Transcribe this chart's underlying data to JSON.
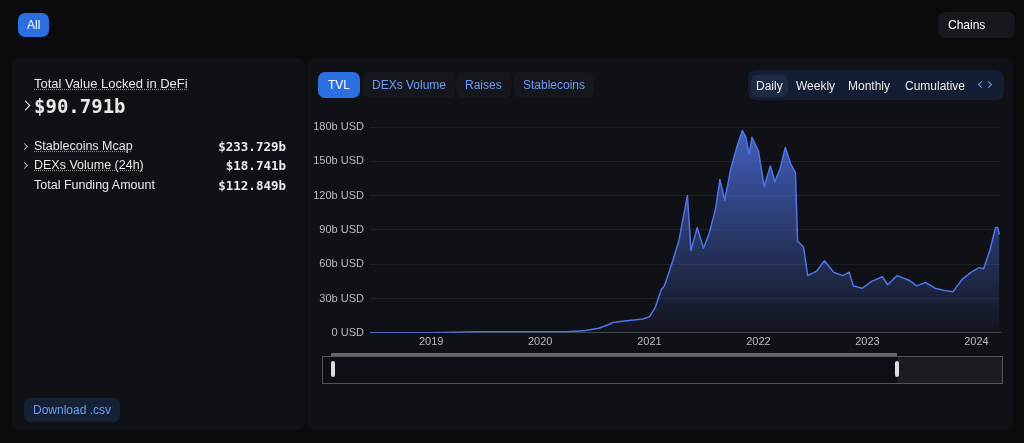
{
  "chart_data": [
    {
      "type": "other",
      "annotations": [
        "Total Value Locked in DeFi",
        "$90.791b",
        "Stablecoins Mcap",
        "$233.729b",
        "DEXs Volume (24h)",
        "$18.741b",
        "Total Funding Amount",
        "$112.849b",
        "Download .csv",
        "All",
        "Chains",
        "TVL",
        "DEXs Volume",
        "Raises",
        "Stablecoins",
        "Daily",
        "Weekly",
        "Monthly",
        "Cumulative"
      ]
    },
    {
      "type": "area",
      "color": "#4f74e8",
      "x": [
        "2018-06-10",
        "2018-10-01",
        "2019-01-01",
        "2019-06-01",
        "2019-10-01",
        "2020-01-01",
        "2020-04-01",
        "2020-06-01",
        "2020-07-15",
        "2020-08-15",
        "2020-09-01",
        "2020-10-01",
        "2020-11-01",
        "2020-12-10",
        "2021-01-01",
        "2021-01-20",
        "2021-02-10",
        "2021-02-20",
        "2021-03-05",
        "2021-03-20",
        "2021-04-10",
        "2021-05-08",
        "2021-05-20",
        "2021-06-10",
        "2021-07-01",
        "2021-07-20",
        "2021-08-10",
        "2021-08-25",
        "2021-09-10",
        "2021-10-01",
        "2021-10-20",
        "2021-11-08",
        "2021-11-20",
        "2021-12-01",
        "2021-12-10",
        "2022-01-01",
        "2022-01-20",
        "2022-02-10",
        "2022-02-25",
        "2022-03-15",
        "2022-04-01",
        "2022-04-20",
        "2022-05-05",
        "2022-05-12",
        "2022-06-01",
        "2022-06-15",
        "2022-07-15",
        "2022-08-10",
        "2022-09-10",
        "2022-10-10",
        "2022-11-01",
        "2022-11-15",
        "2022-12-15",
        "2023-01-15",
        "2023-02-20",
        "2023-03-10",
        "2023-04-10",
        "2023-05-20",
        "2023-06-15",
        "2023-07-15",
        "2023-08-15",
        "2023-09-15",
        "2023-10-15",
        "2023-11-15",
        "2023-12-15",
        "2024-01-10",
        "2024-01-25",
        "2024-02-15",
        "2024-03-05",
        "2024-03-12",
        "2024-03-18"
      ],
      "values": [
        0,
        0,
        0,
        1,
        1,
        1,
        1,
        2,
        4,
        7,
        9,
        10,
        11,
        12,
        14,
        22,
        38,
        41,
        51,
        63,
        81,
        120,
        72,
        92,
        74,
        87,
        108,
        134,
        116,
        144,
        162,
        177,
        171,
        156,
        171,
        159,
        128,
        146,
        132,
        144,
        162,
        147,
        140,
        80,
        75,
        50,
        54,
        63,
        53,
        50,
        53,
        41,
        39,
        45,
        49,
        42,
        50,
        46,
        41,
        44,
        39,
        37,
        36,
        47,
        53,
        57,
        56,
        72,
        92,
        92,
        86
      ],
      "xlim": [
        "2018-06-10",
        "2024-03-20"
      ],
      "xticks": [
        "2019",
        "2020",
        "2021",
        "2022",
        "2023",
        "2024"
      ],
      "ylim": [
        0,
        180
      ],
      "yticks": [
        {
          "value": 0,
          "label": "0 USD"
        },
        {
          "value": 30,
          "label": "30b USD"
        },
        {
          "value": 60,
          "label": "60b USD"
        },
        {
          "value": 90,
          "label": "90b USD"
        },
        {
          "value": 120,
          "label": "120b USD"
        },
        {
          "value": 150,
          "label": "150b USD"
        },
        {
          "value": 180,
          "label": "180b USD"
        }
      ],
      "grid": "y"
    }
  ]
}
